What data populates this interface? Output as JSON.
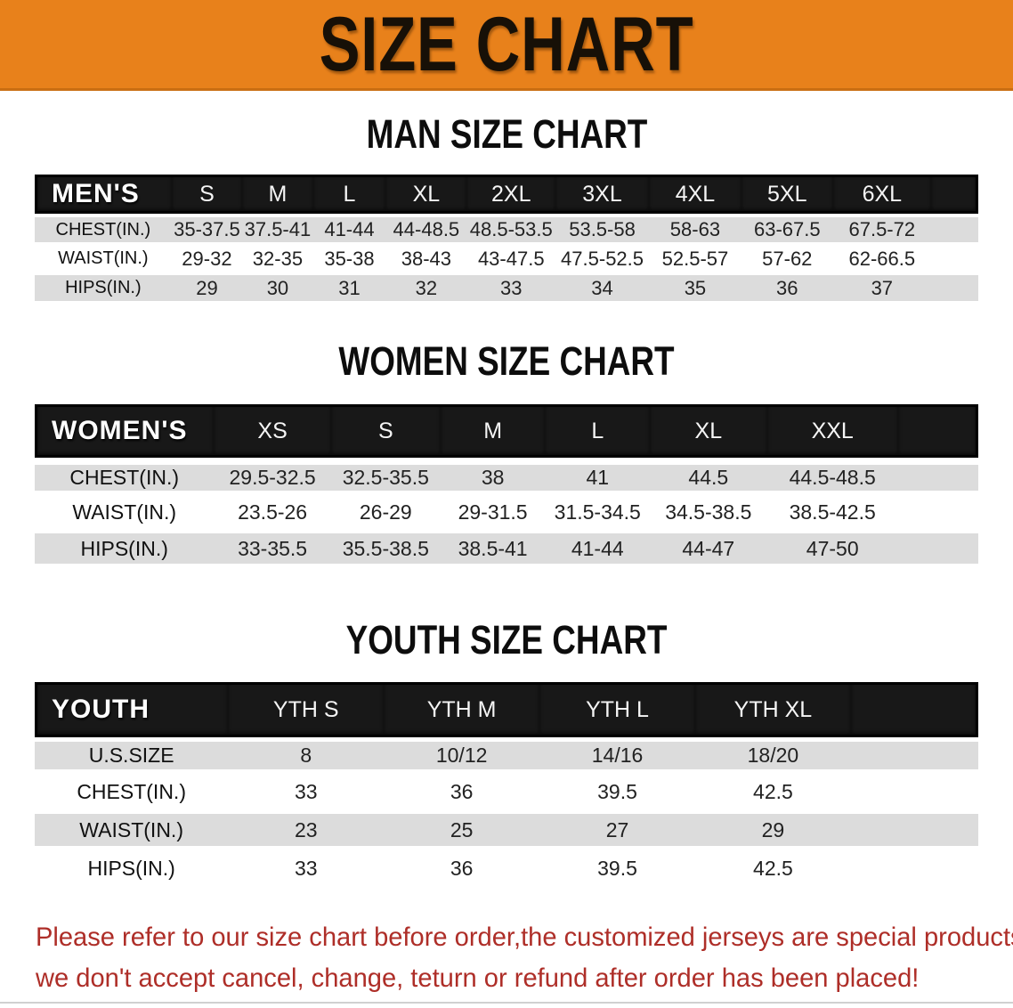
{
  "banner": {
    "title": "SIZE CHART"
  },
  "colors": {
    "banner_bg": "#E8811B",
    "banner_border": "#C96E12",
    "header_bg": "#181818",
    "header_border": "#000000",
    "stripe": "#DCDCDC",
    "note_text": "#AE2E28",
    "title_text": "#0D0D0D"
  },
  "sections": [
    {
      "title": "MAN SIZE CHART",
      "table": {
        "header_label": "MEN'S",
        "columns": [
          "S",
          "M",
          "L",
          "XL",
          "2XL",
          "3XL",
          "4XL",
          "5XL",
          "6XL"
        ],
        "rows": [
          {
            "label": "CHEST(IN.)",
            "values": [
              "35-37.5",
              "37.5-41",
              "41-44",
              "44-48.5",
              "48.5-53.5",
              "53.5-58",
              "58-63",
              "63-67.5",
              "67.5-72"
            ]
          },
          {
            "label": "WAIST(IN.)",
            "values": [
              "29-32",
              "32-35",
              "35-38",
              "38-43",
              "43-47.5",
              "47.5-52.5",
              "52.5-57",
              "57-62",
              "62-66.5"
            ]
          },
          {
            "label": "HIPS(IN.)",
            "values": [
              "29",
              "30",
              "31",
              "32",
              "33",
              "34",
              "35",
              "36",
              "37"
            ]
          }
        ]
      }
    },
    {
      "title": "WOMEN SIZE CHART",
      "table": {
        "header_label": "WOMEN'S",
        "columns": [
          "XS",
          "S",
          "M",
          "L",
          "XL",
          "XXL"
        ],
        "rows": [
          {
            "label": "CHEST(IN.)",
            "values": [
              "29.5-32.5",
              "32.5-35.5",
              "38",
              "41",
              "44.5",
              "44.5-48.5"
            ]
          },
          {
            "label": "WAIST(IN.)",
            "values": [
              "23.5-26",
              "26-29",
              "29-31.5",
              "31.5-34.5",
              "34.5-38.5",
              "38.5-42.5"
            ]
          },
          {
            "label": "HIPS(IN.)",
            "values": [
              "33-35.5",
              "35.5-38.5",
              "38.5-41",
              "41-44",
              "44-47",
              "47-50"
            ]
          }
        ]
      }
    },
    {
      "title": "YOUTH SIZE CHART",
      "table": {
        "header_label": "YOUTH",
        "columns": [
          "YTH S",
          "YTH M",
          "YTH L",
          "YTH XL"
        ],
        "rows": [
          {
            "label": "U.S.SIZE",
            "values": [
              "8",
              "10/12",
              "14/16",
              "18/20"
            ]
          },
          {
            "label": "CHEST(IN.)",
            "values": [
              "33",
              "36",
              "39.5",
              "42.5"
            ]
          },
          {
            "label": "WAIST(IN.)",
            "values": [
              "23",
              "25",
              "27",
              "29"
            ]
          },
          {
            "label": "HIPS(IN.)",
            "values": [
              "33",
              "36",
              "39.5",
              "42.5"
            ]
          }
        ]
      }
    }
  ],
  "note": {
    "line1": "Please refer to our size chart before order,the customized jerseys are special products,",
    "line2": "we don't accept cancel, change, teturn or refund after order has been placed!"
  }
}
